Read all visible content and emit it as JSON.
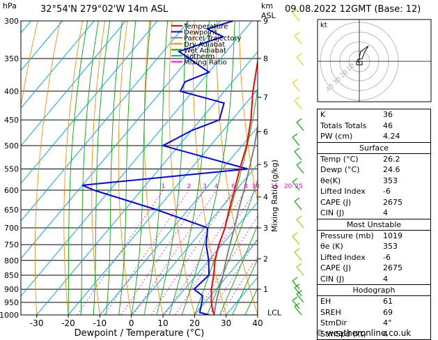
{
  "header": {
    "hpa_label": "hPa",
    "location": "32°54'N  279°02'W  14m  ASL",
    "km_label": "km",
    "asl_label": "ASL",
    "datetime": "09.08.2022  12GMT  (Base: 12)"
  },
  "chart_data": {
    "type": "skew-t",
    "xlabel": "Dewpoint / Temperature (°C)",
    "ylabel_right": "Mixing Ratio (g/kg)",
    "x_ticks": [
      "-30",
      "-20",
      "-10",
      "0",
      "10",
      "20",
      "30",
      "40"
    ],
    "pressure_levels": [
      300,
      350,
      400,
      450,
      500,
      550,
      600,
      650,
      700,
      750,
      800,
      850,
      900,
      950,
      1000
    ],
    "km_ticks": [
      {
        "km": "9",
        "p": 300
      },
      {
        "km": "8",
        "p": 350
      },
      {
        "km": "7",
        "p": 410
      },
      {
        "km": "6",
        "p": 472
      },
      {
        "km": "5",
        "p": 540
      },
      {
        "km": "4",
        "p": 617
      },
      {
        "km": "3",
        "p": 700
      },
      {
        "km": "2",
        "p": 795
      },
      {
        "km": "1",
        "p": 900
      }
    ],
    "lcl_label": "LCL",
    "lcl_pressure": 996,
    "mixing_ratio_labels": [
      "1",
      "2",
      "3",
      "4",
      "6",
      "8",
      "10",
      "15",
      "20",
      "25"
    ],
    "mixing_ratio_values": [
      1,
      2,
      3,
      4,
      6,
      8,
      10,
      15,
      20,
      25
    ],
    "legend": [
      {
        "label": "Temperature",
        "color": "#ff0000"
      },
      {
        "label": "Dewpoint",
        "color": "#0000ff"
      },
      {
        "label": "Parcel Trajectory",
        "color": "#808080"
      },
      {
        "label": "Dry Adiabat",
        "color": "#ff8c00"
      },
      {
        "label": "Wet Adiabat",
        "color": "#00aa00"
      },
      {
        "label": "Isotherm",
        "color": "#00aaff"
      },
      {
        "label": "Mixing Ratio",
        "color": "#ff00ff"
      }
    ],
    "temperature": [
      {
        "p": 1000,
        "t": 26.2
      },
      {
        "p": 975,
        "t": 24
      },
      {
        "p": 950,
        "t": 22
      },
      {
        "p": 900,
        "t": 18.5
      },
      {
        "p": 850,
        "t": 15.5
      },
      {
        "p": 800,
        "t": 12
      },
      {
        "p": 750,
        "t": 9
      },
      {
        "p": 700,
        "t": 6.5
      },
      {
        "p": 650,
        "t": 3
      },
      {
        "p": 600,
        "t": -0.5
      },
      {
        "p": 550,
        "t": -4.5
      },
      {
        "p": 500,
        "t": -8.5
      },
      {
        "p": 450,
        "t": -14
      },
      {
        "p": 400,
        "t": -21
      },
      {
        "p": 350,
        "t": -28
      },
      {
        "p": 300,
        "t": -37
      }
    ],
    "dewpoint": [
      {
        "p": 1000,
        "t": 24.6
      },
      {
        "p": 990,
        "t": 21
      },
      {
        "p": 950,
        "t": 19
      },
      {
        "p": 925,
        "t": 17.5
      },
      {
        "p": 900,
        "t": 13
      },
      {
        "p": 850,
        "t": 14
      },
      {
        "p": 800,
        "t": 10
      },
      {
        "p": 750,
        "t": 5
      },
      {
        "p": 700,
        "t": 1
      },
      {
        "p": 650,
        "t": -20
      },
      {
        "p": 600,
        "t": -45
      },
      {
        "p": 588,
        "t": -50
      },
      {
        "p": 550,
        "t": -2
      },
      {
        "p": 500,
        "t": -35
      },
      {
        "p": 470,
        "t": -30
      },
      {
        "p": 450,
        "t": -24
      },
      {
        "p": 420,
        "t": -27
      },
      {
        "p": 400,
        "t": -44
      },
      {
        "p": 385,
        "t": -45
      },
      {
        "p": 370,
        "t": -40
      },
      {
        "p": 340,
        "t": -55
      },
      {
        "p": 320,
        "t": -45
      },
      {
        "p": 310,
        "t": -52
      },
      {
        "p": 300,
        "t": -46
      }
    ],
    "parcel": [
      {
        "p": 1000,
        "t": 26.2
      },
      {
        "p": 950,
        "t": 23.5
      },
      {
        "p": 900,
        "t": 21
      },
      {
        "p": 850,
        "t": 18.5
      },
      {
        "p": 800,
        "t": 15.5
      },
      {
        "p": 750,
        "t": 12.5
      },
      {
        "p": 700,
        "t": 9.5
      },
      {
        "p": 650,
        "t": 6
      },
      {
        "p": 600,
        "t": 2.5
      },
      {
        "p": 550,
        "t": -1.5
      },
      {
        "p": 500,
        "t": -6
      },
      {
        "p": 450,
        "t": -11.5
      },
      {
        "p": 400,
        "t": -17.5
      },
      {
        "p": 350,
        "t": -25
      }
    ]
  },
  "hodograph": {
    "unit_label": "kt",
    "ring_labels": [
      "10",
      "20",
      "30",
      "40"
    ]
  },
  "indices": {
    "rows": [
      {
        "label": "K",
        "value": "36"
      },
      {
        "label": "Totals Totals",
        "value": "46"
      },
      {
        "label": "PW (cm)",
        "value": "4.24"
      }
    ]
  },
  "surface": {
    "title": "Surface",
    "rows": [
      {
        "label": "Temp (°C)",
        "value": "26.2"
      },
      {
        "label": "Dewp (°C)",
        "value": "24.6"
      },
      {
        "label": "θe(K)",
        "value": "353"
      },
      {
        "label": "Lifted Index",
        "value": "-6"
      },
      {
        "label": "CAPE (J)",
        "value": "2675"
      },
      {
        "label": "CIN (J)",
        "value": "4"
      }
    ]
  },
  "most_unstable": {
    "title": "Most Unstable",
    "rows": [
      {
        "label": "Pressure (mb)",
        "value": "1019"
      },
      {
        "label": "θe (K)",
        "value": "353"
      },
      {
        "label": "Lifted Index",
        "value": "-6"
      },
      {
        "label": "CAPE (J)",
        "value": "2675"
      },
      {
        "label": "CIN (J)",
        "value": "4"
      }
    ]
  },
  "hodograph_table": {
    "title": "Hodograph",
    "rows": [
      {
        "label": "EH",
        "value": "61"
      },
      {
        "label": "SREH",
        "value": "69"
      },
      {
        "label": "StmDir",
        "value": "4°"
      },
      {
        "label": "StmSpd (kt)",
        "value": "4"
      }
    ]
  },
  "footer": {
    "copyright": "© weatheronline.co.uk"
  }
}
